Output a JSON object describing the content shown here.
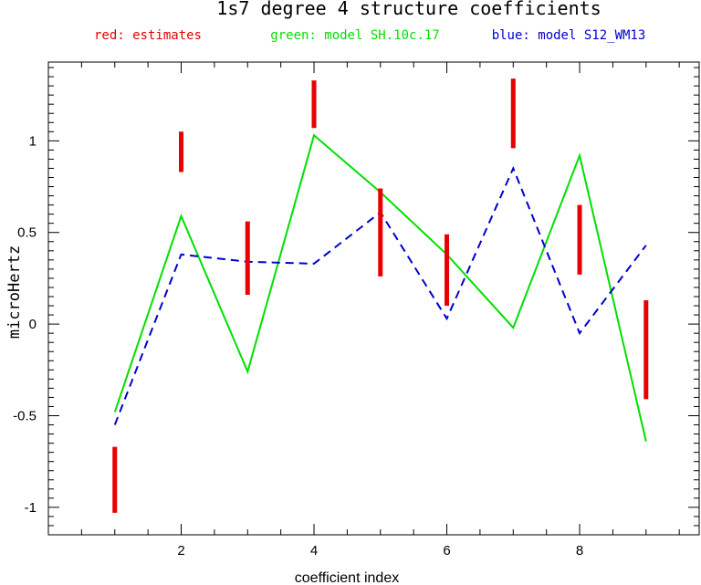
{
  "chart_data": {
    "type": "line",
    "title": "1s7 degree 4 structure coefficients",
    "legend": [
      {
        "label": "red: estimates",
        "color": "#e80000"
      },
      {
        "label": "green: model SH.10c.17",
        "color": "#00e000"
      },
      {
        "label": "blue: model S12_WM13",
        "color": "#0000d0"
      }
    ],
    "xlabel": "coefficient index",
    "ylabel": "microHertz",
    "xlim": [
      0,
      9.8
    ],
    "ylim": [
      -1.15,
      1.43
    ],
    "x_ticks": [
      2,
      4,
      6,
      8
    ],
    "y_ticks": [
      -1,
      -0.5,
      0,
      0.5,
      1
    ],
    "x_tick_labels": [
      "2",
      "4",
      "6",
      "8"
    ],
    "y_tick_labels": [
      "-1",
      "-0.5",
      "0",
      "0.5",
      "1"
    ],
    "estimates": {
      "name": "estimates",
      "color": "#e80000",
      "x": [
        1,
        2,
        3,
        4,
        5,
        6,
        7,
        8,
        9
      ],
      "low": [
        -1.03,
        0.83,
        0.16,
        1.07,
        0.26,
        0.1,
        0.96,
        0.27,
        -0.41
      ],
      "high": [
        -0.67,
        1.05,
        0.56,
        1.33,
        0.74,
        0.49,
        1.34,
        0.65,
        0.13
      ]
    },
    "series": [
      {
        "name": "model SH.10c.17",
        "color": "#00e000",
        "dashed": false,
        "x": [
          1,
          2,
          3,
          4,
          5,
          6,
          7,
          8,
          9
        ],
        "values": [
          -0.48,
          0.59,
          -0.26,
          1.03,
          0.72,
          0.38,
          -0.02,
          0.92,
          -0.64
        ]
      },
      {
        "name": "model S12_WM13",
        "color": "#0000d0",
        "dashed": true,
        "x": [
          1,
          2,
          3,
          4,
          5,
          6,
          7,
          8,
          9
        ],
        "values": [
          -0.55,
          0.38,
          0.34,
          0.33,
          0.61,
          0.03,
          0.85,
          -0.05,
          0.43
        ]
      }
    ]
  }
}
